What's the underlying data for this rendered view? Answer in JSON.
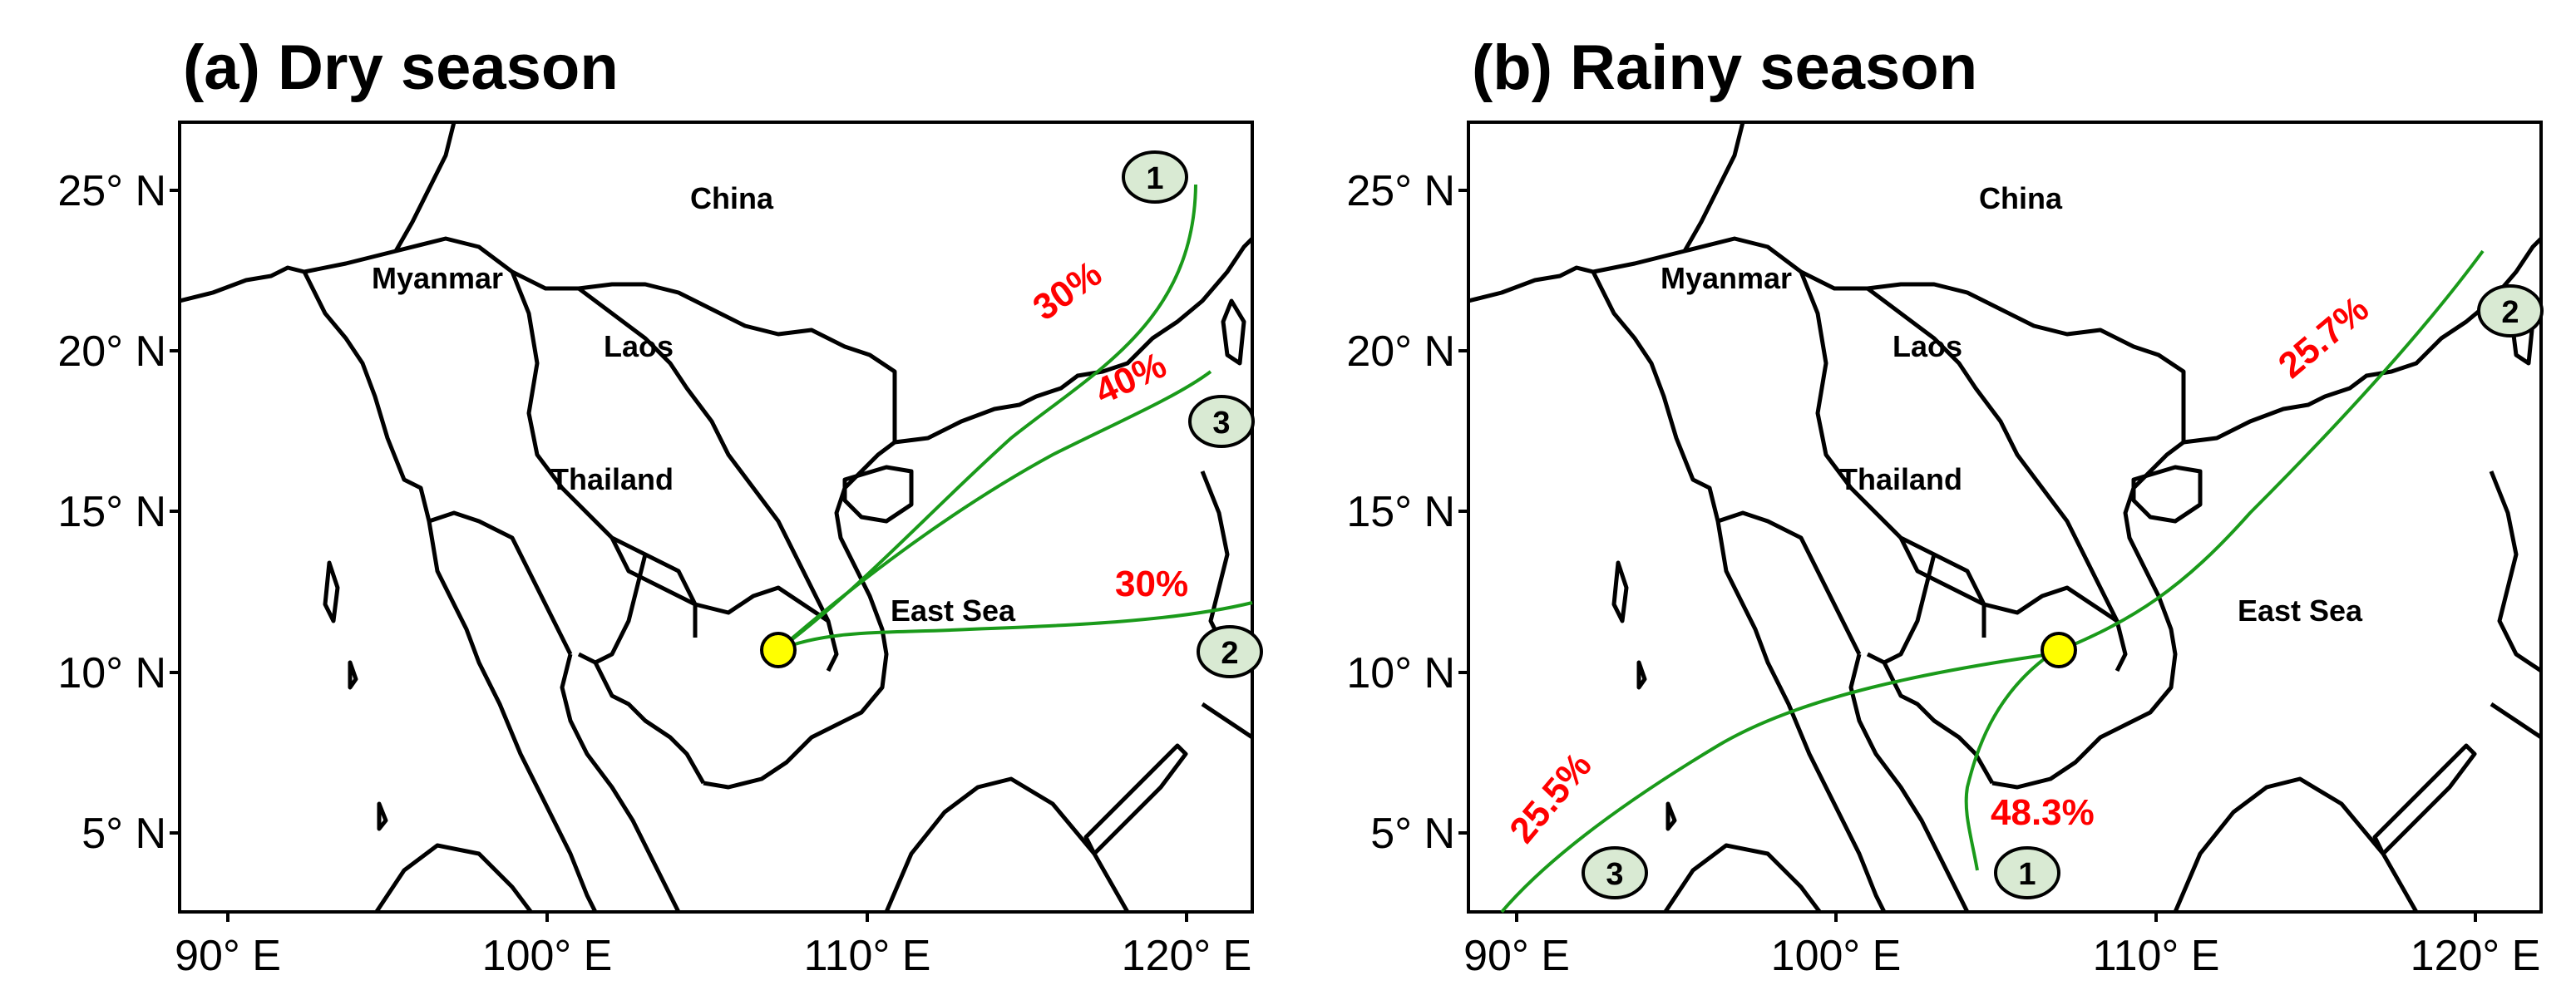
{
  "panels": [
    {
      "title": "(a) Dry season",
      "x_ticks": [
        "90° E",
        "100° E",
        "110° E",
        "120° E"
      ],
      "y_ticks": [
        "25° N",
        "20° N",
        "15° N",
        "10° N",
        "5° N"
      ],
      "countries": [
        "China",
        "Myanmar",
        "Laos",
        "Thailand",
        "East Sea"
      ],
      "routes": [
        {
          "id": "1",
          "percent": "30%"
        },
        {
          "id": "3",
          "percent": "40%"
        },
        {
          "id": "2",
          "percent": "30%"
        }
      ]
    },
    {
      "title": "(b) Rainy season",
      "x_ticks": [
        "90° E",
        "100° E",
        "110° E",
        "120° E"
      ],
      "y_ticks": [
        "25° N",
        "20° N",
        "15° N",
        "10° N",
        "5° N"
      ],
      "countries": [
        "China",
        "Myanmar",
        "Laos",
        "Thailand",
        "East Sea"
      ],
      "routes": [
        {
          "id": "2",
          "percent": "25.7%"
        },
        {
          "id": "3",
          "percent": "25.5%"
        },
        {
          "id": "1",
          "percent": "48.3%"
        }
      ]
    }
  ],
  "colors": {
    "route_line": "#1a9a1a",
    "percent_text": "#ff0000",
    "origin_marker": "#ffff00",
    "route_badge": "#d9ead3"
  },
  "extent": {
    "lon": [
      88.5,
      122
    ],
    "lat": [
      2.5,
      27
    ]
  }
}
